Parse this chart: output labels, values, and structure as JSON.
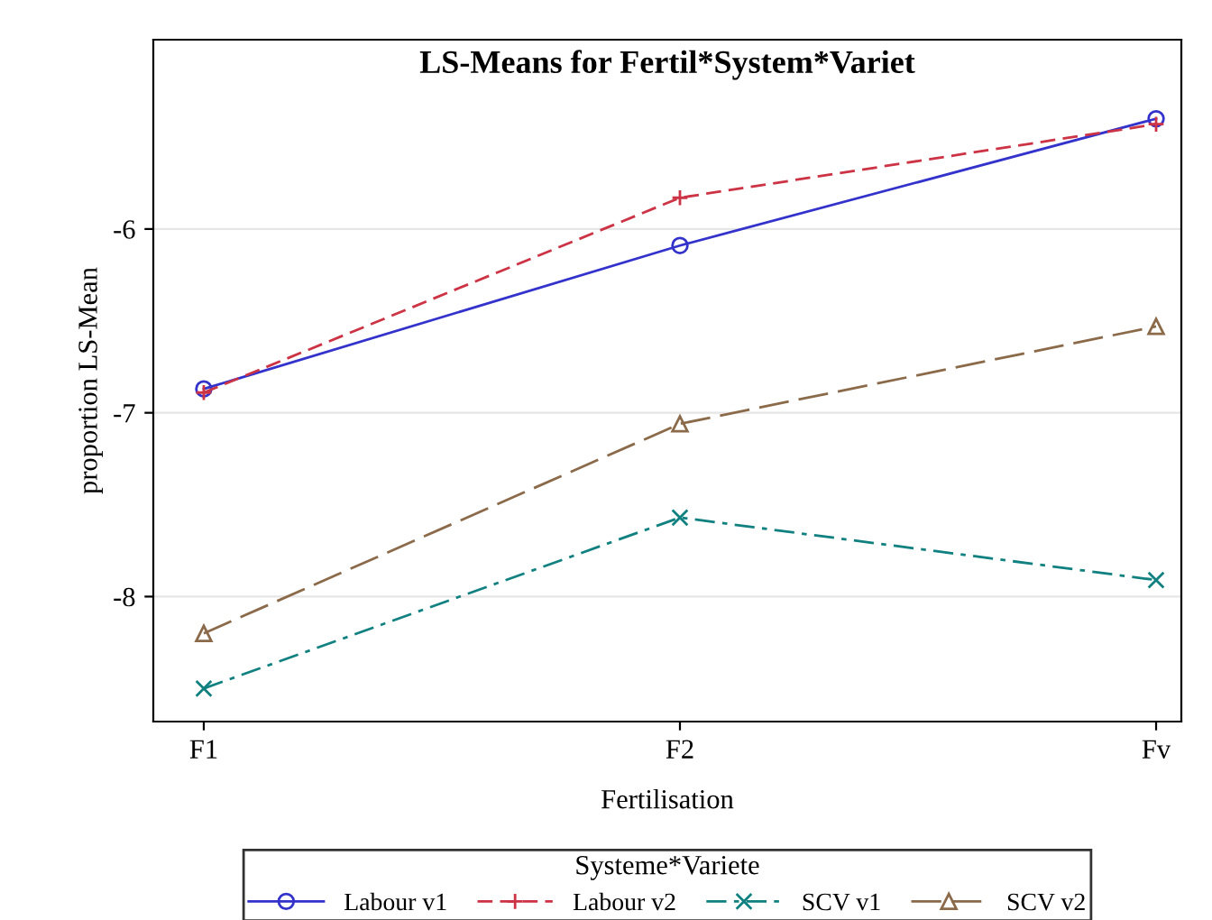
{
  "chart_data": {
    "type": "line",
    "title": "LS-Means for Fertil*System*Variet",
    "xlabel": "Fertilisation",
    "ylabel": "proportion LS-Mean",
    "legend_title": "Systeme*Variete",
    "legend": "bottom",
    "grid": "y",
    "categories": [
      "F1",
      "F2",
      "Fv"
    ],
    "ylim": [
      -8.68,
      -4.97
    ],
    "yticks": [
      -8,
      -7,
      -6
    ],
    "series": [
      {
        "name": "Labour v1",
        "color": "#3333cc",
        "marker": "circle",
        "line_style": "solid",
        "values": [
          -6.87,
          -6.09,
          -5.4
        ]
      },
      {
        "name": "Labour v2",
        "color": "#cc3344",
        "marker": "plus",
        "line_style": "dashed",
        "values": [
          -6.89,
          -5.83,
          -5.43
        ]
      },
      {
        "name": "SCV v1",
        "color": "#108080",
        "marker": "cross",
        "line_style": "dashdot",
        "values": [
          -8.5,
          -7.57,
          -7.91
        ]
      },
      {
        "name": "SCV v2",
        "color": "#8b6a4a",
        "marker": "triangle",
        "line_style": "longdash",
        "values": [
          -8.2,
          -7.06,
          -6.53
        ]
      }
    ]
  }
}
